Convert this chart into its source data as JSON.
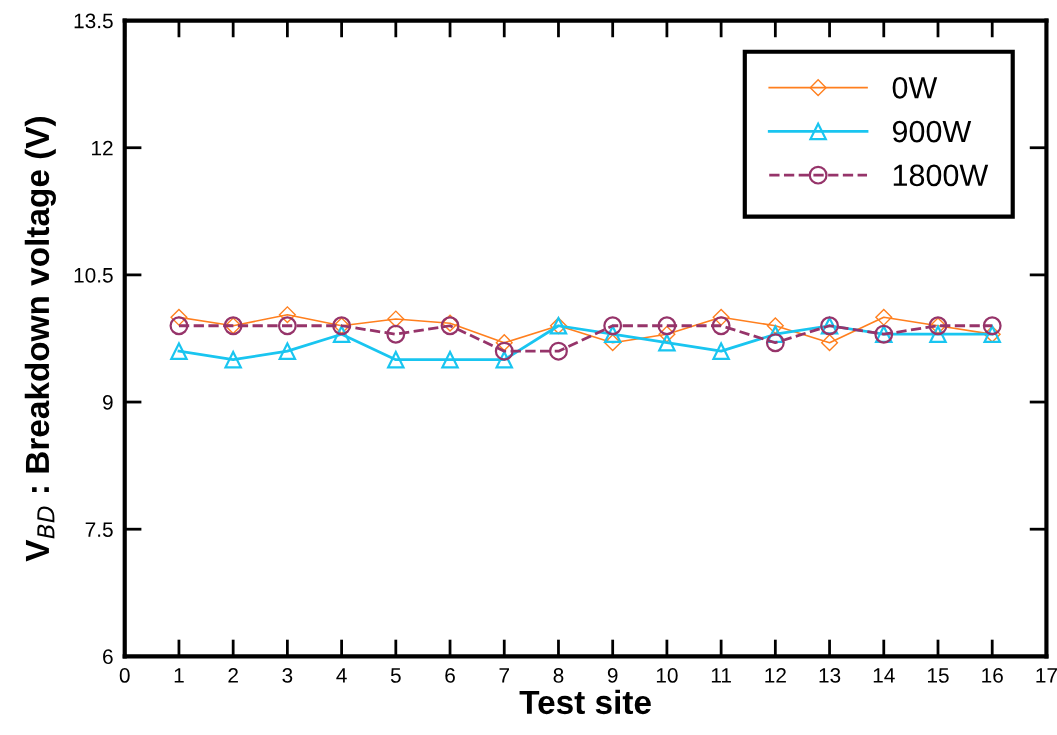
{
  "chart_data": {
    "type": "line",
    "xlabel": "Test site",
    "ylabel": "V$_{BD}$ : Breakdown voltage (V)",
    "x": [
      1,
      2,
      3,
      4,
      5,
      6,
      7,
      8,
      9,
      10,
      11,
      12,
      13,
      14,
      15,
      16
    ],
    "series": [
      {
        "name": "0W",
        "color": "#ff7f1e",
        "marker": "diamond",
        "line_style": "solid",
        "values": [
          10.0,
          9.9,
          10.03,
          9.9,
          9.98,
          9.93,
          9.7,
          9.9,
          9.7,
          9.8,
          10.0,
          9.9,
          9.7,
          10.0,
          9.9,
          9.8
        ]
      },
      {
        "name": "900W",
        "color": "#19c5f0",
        "marker": "triangle",
        "line_style": "solid",
        "values": [
          9.6,
          9.5,
          9.6,
          9.8,
          9.5,
          9.5,
          9.5,
          9.9,
          9.8,
          9.7,
          9.6,
          9.8,
          9.9,
          9.8,
          9.8,
          9.8
        ]
      },
      {
        "name": "1800W",
        "color": "#96346a",
        "marker": "circle",
        "line_style": "dashed",
        "values": [
          9.9,
          9.9,
          9.9,
          9.9,
          9.8,
          9.9,
          9.6,
          9.6,
          9.9,
          9.9,
          9.9,
          9.7,
          9.9,
          9.8,
          9.9,
          9.9
        ]
      }
    ],
    "xlim": [
      0,
      17
    ],
    "xticks": [
      0,
      1,
      2,
      3,
      4,
      5,
      6,
      7,
      8,
      9,
      10,
      11,
      12,
      13,
      14,
      15,
      16,
      17
    ],
    "ylim": [
      6,
      13.5
    ],
    "yticks": [
      6,
      7.5,
      9,
      10.5,
      12,
      13.5
    ],
    "grid": false,
    "legend": "top right"
  }
}
